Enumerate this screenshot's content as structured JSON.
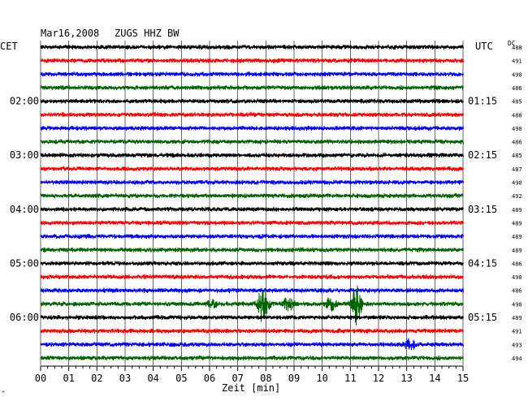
{
  "header": {
    "date": "Mar16,2008",
    "station": "ZUGS HHZ BW",
    "left_tz": "CET",
    "right_tz": "UTC",
    "dc_label": "DC"
  },
  "footer": {
    "xlabel": "Zeit [min]",
    "corner_mark": "^"
  },
  "colors": {
    "trace_cycle": [
      "#000000",
      "#ff0000",
      "#0000ff",
      "#006400"
    ],
    "grid": "#000000"
  },
  "chart_data": {
    "type": "line",
    "title": "Mar16,2008   ZUGS HHZ BW",
    "xlabel": "Zeit [min]",
    "ylabel": "",
    "xlim": [
      0,
      15
    ],
    "x_ticks": [
      "00",
      "01",
      "02",
      "03",
      "04",
      "05",
      "06",
      "07",
      "08",
      "09",
      "10",
      "11",
      "12",
      "13",
      "14",
      "15"
    ],
    "rows": 24,
    "minutes_per_row": 15,
    "left_hour_labels": [
      {
        "row": 4,
        "label": "02:00"
      },
      {
        "row": 8,
        "label": "03:00"
      },
      {
        "row": 12,
        "label": "04:00"
      },
      {
        "row": 16,
        "label": "05:00"
      },
      {
        "row": 20,
        "label": "06:00"
      }
    ],
    "right_hour_labels": [
      {
        "row": 4,
        "label": "01:15"
      },
      {
        "row": 8,
        "label": "02:15"
      },
      {
        "row": 12,
        "label": "03:15"
      },
      {
        "row": 16,
        "label": "04:15"
      },
      {
        "row": 20,
        "label": "05:15"
      }
    ],
    "dc_values": [
      "488",
      "491",
      "490",
      "486",
      "485",
      "488",
      "490",
      "486",
      "485",
      "487",
      "490",
      "492",
      "489",
      "489",
      "489",
      "489",
      "486",
      "490",
      "486",
      "490",
      "489",
      "491",
      "493",
      "494"
    ],
    "events": [
      {
        "row": 19,
        "minute": 7.9,
        "amplitude": 1.0
      },
      {
        "row": 19,
        "minute": 8.8,
        "amplitude": 0.35
      },
      {
        "row": 19,
        "minute": 10.3,
        "amplitude": 0.3
      },
      {
        "row": 19,
        "minute": 11.2,
        "amplitude": 1.0
      },
      {
        "row": 19,
        "minute": 6.1,
        "amplitude": 0.15
      },
      {
        "row": 22,
        "minute": 13.1,
        "amplitude": 0.25
      }
    ]
  }
}
